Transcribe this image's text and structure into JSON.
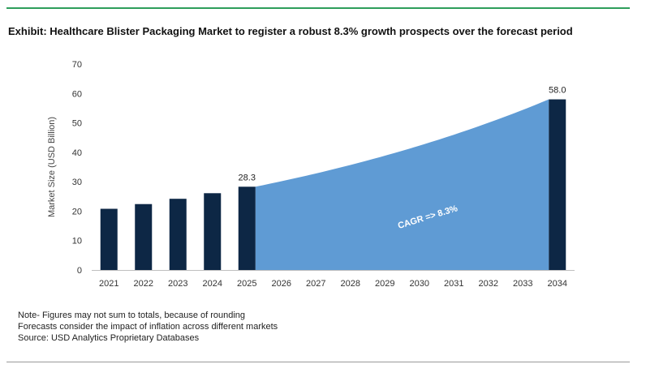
{
  "title": "Exhibit: Healthcare Blister Packaging Market to register a robust 8.3% growth prospects over the forecast period",
  "notes": [
    "Note- Figures may not sum to totals, because of rounding",
    "Forecasts consider the impact of inflation across different markets",
    "Source: USD Analytics Proprietary Databases"
  ],
  "colors": {
    "bar": "#0d2745",
    "area": "#5f9bd4",
    "accent_rule": "#2e9e5b",
    "text": "#333333"
  },
  "chart_data": {
    "type": "bar",
    "categories": [
      "2021",
      "2022",
      "2023",
      "2024",
      "2025",
      "2026",
      "2027",
      "2028",
      "2029",
      "2030",
      "2031",
      "2032",
      "2033",
      "2034"
    ],
    "values": [
      20.8,
      22.4,
      24.2,
      26.1,
      28.3,
      null,
      null,
      null,
      null,
      null,
      null,
      null,
      null,
      58.0
    ],
    "data_labels": {
      "2025": "28.3",
      "2034": "58.0"
    },
    "area": {
      "from": "2025",
      "to": "2034",
      "start_value": 28.3,
      "end_value": 58.0,
      "annotation": "CAGR => 8.3%"
    },
    "ylabel": "Market Size (USD Billion)",
    "xlabel": "",
    "ylim": [
      0,
      70
    ],
    "yticks": [
      0,
      10,
      20,
      30,
      40,
      50,
      60,
      70
    ],
    "grid": false,
    "legend": "none"
  }
}
